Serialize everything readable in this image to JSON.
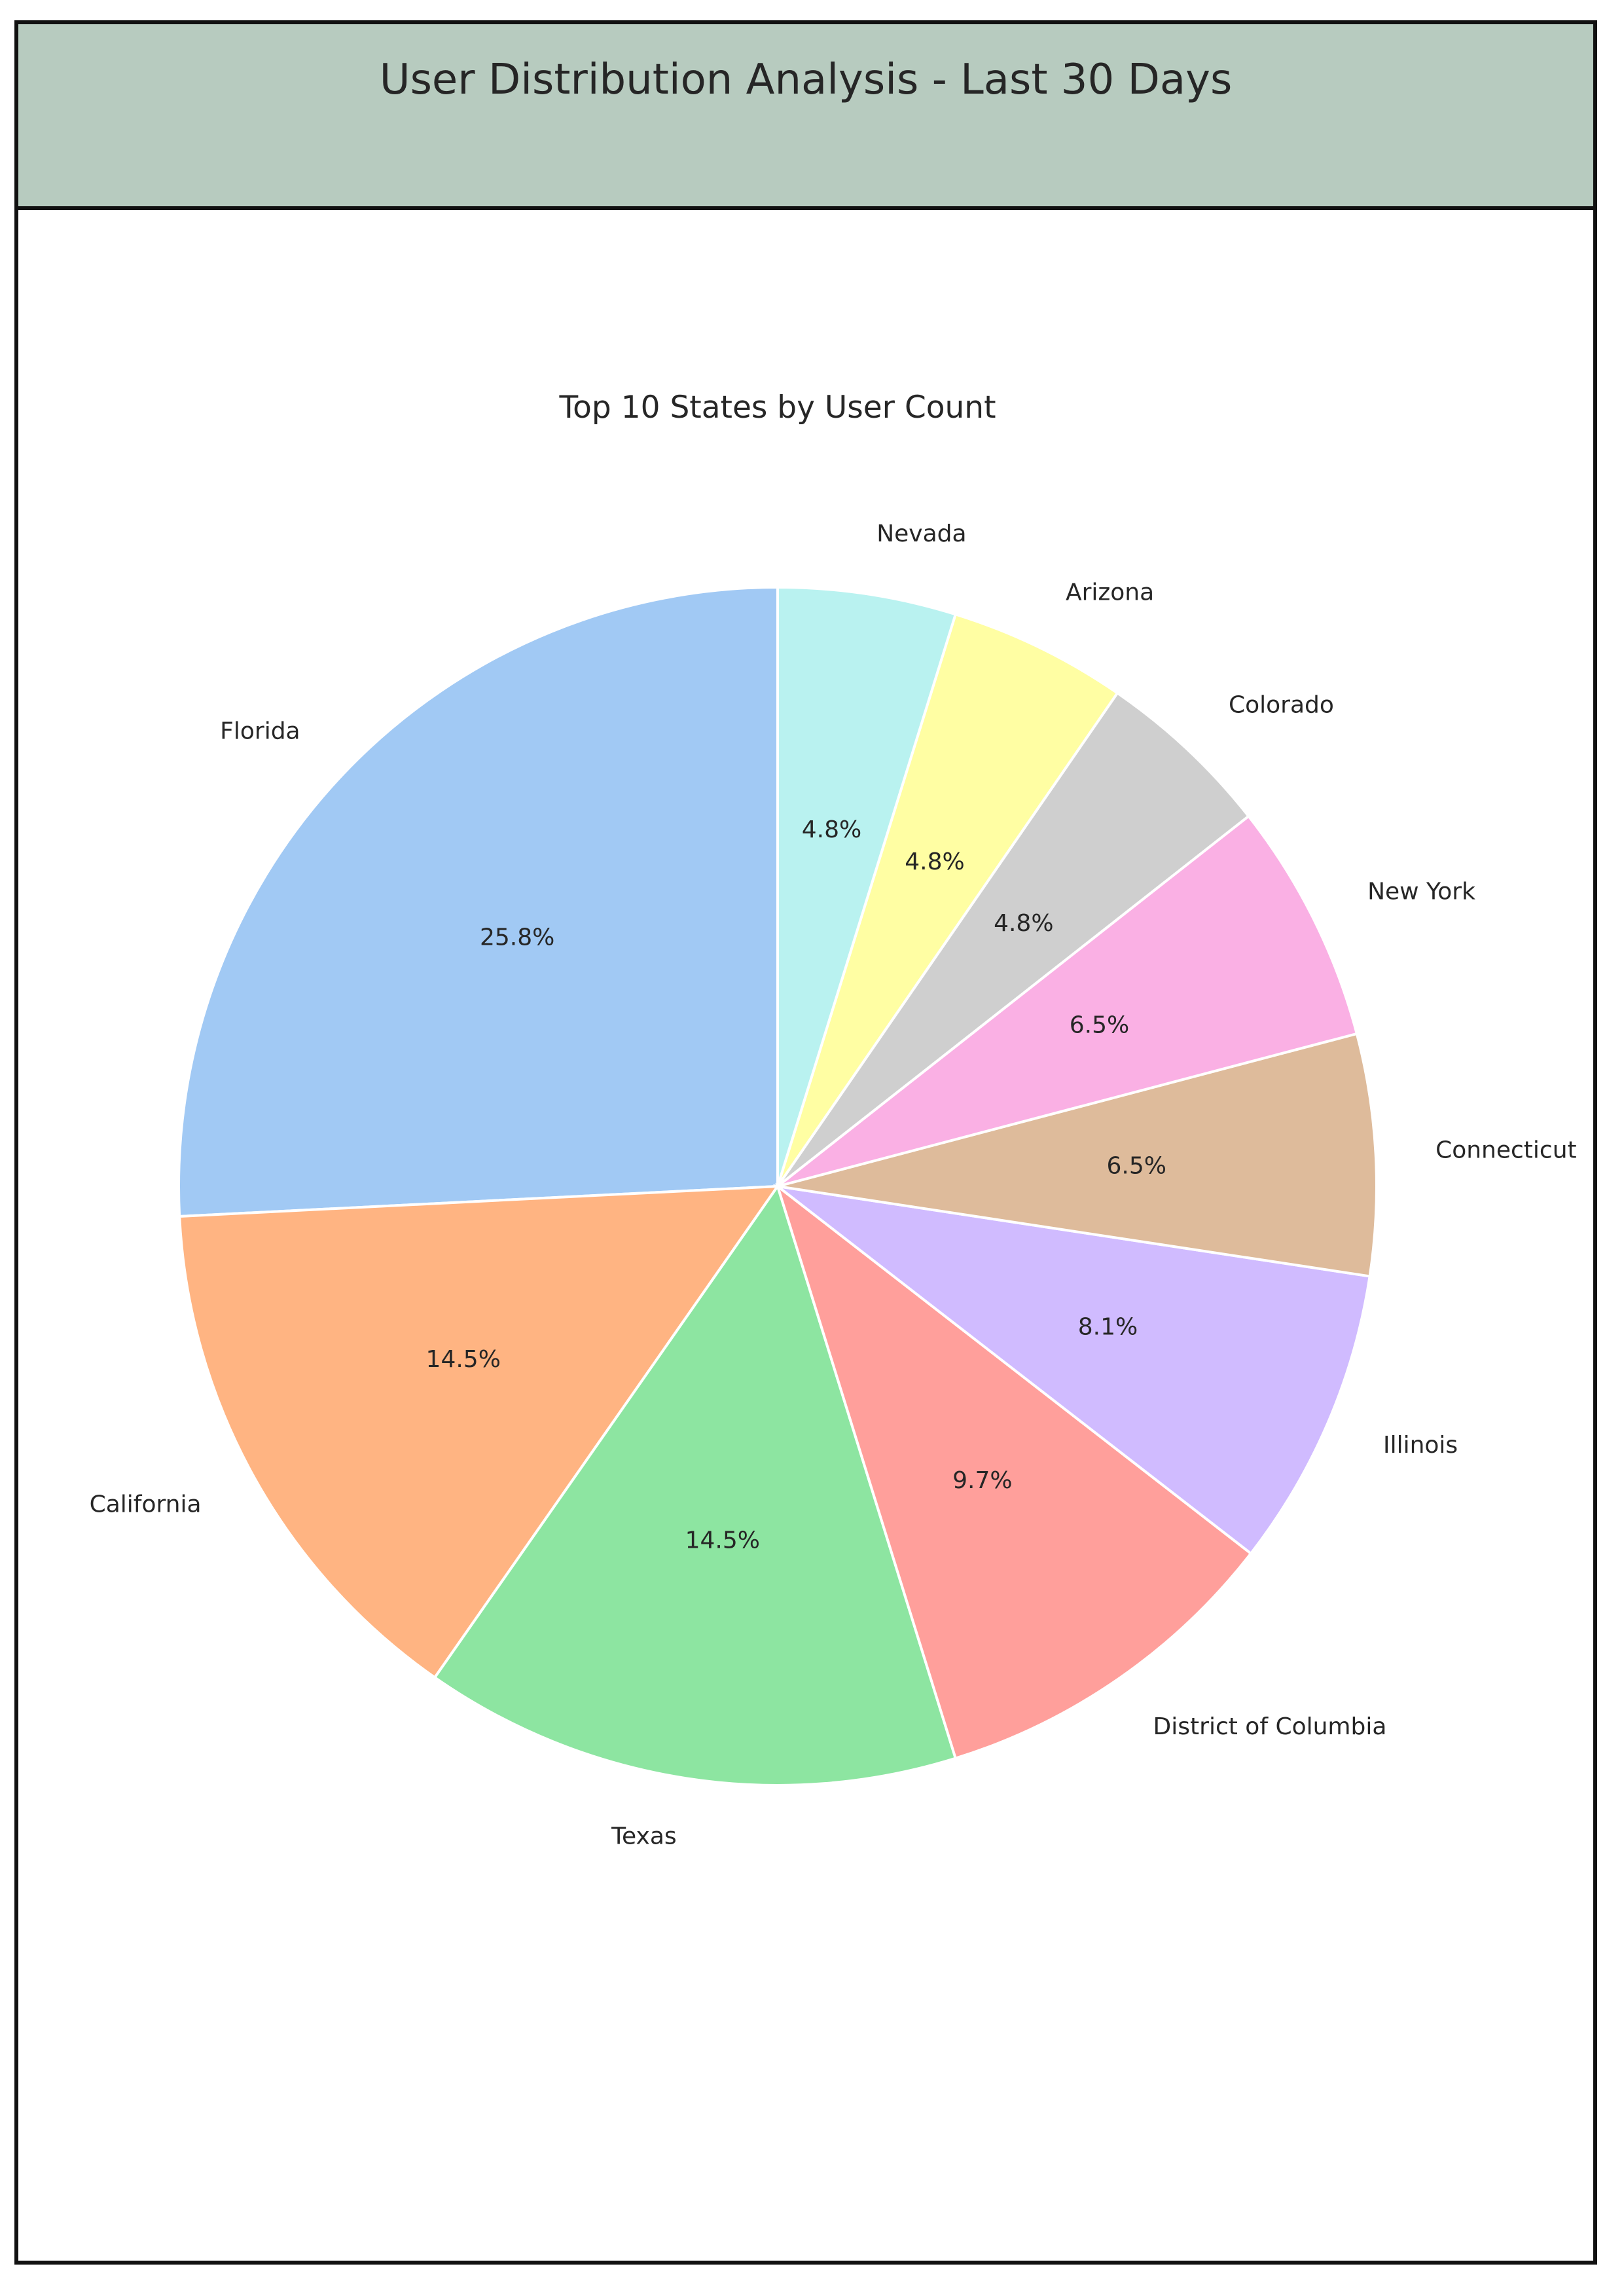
{
  "page": {
    "title": "User Distribution Analysis - Last 30 Days"
  },
  "chart_data": {
    "type": "pie",
    "title": "Top 10 States by User Count",
    "start_angle_deg": 90,
    "direction": "counterclockwise",
    "slice_edge_color": "#ffffff",
    "categories": [
      "Florida",
      "California",
      "Texas",
      "District of Columbia",
      "Illinois",
      "Connecticut",
      "New York",
      "Colorado",
      "Arizona",
      "Nevada"
    ],
    "values": [
      25.8,
      14.5,
      14.5,
      9.7,
      8.1,
      6.5,
      6.5,
      4.8,
      4.8,
      4.8
    ],
    "percent_labels": [
      "25.8%",
      "14.5%",
      "14.5%",
      "9.7%",
      "8.1%",
      "6.5%",
      "6.5%",
      "4.8%",
      "4.8%",
      "4.8%"
    ],
    "colors": [
      "#a1c9f4",
      "#ffb482",
      "#8de5a1",
      "#ff9f9b",
      "#d0bbff",
      "#debb9b",
      "#fab0e4",
      "#cfcfcf",
      "#fffea3",
      "#b9f2f0"
    ]
  },
  "colors": {
    "header_background": "#b7cbbf",
    "border": "#111111",
    "text": "#262626"
  }
}
